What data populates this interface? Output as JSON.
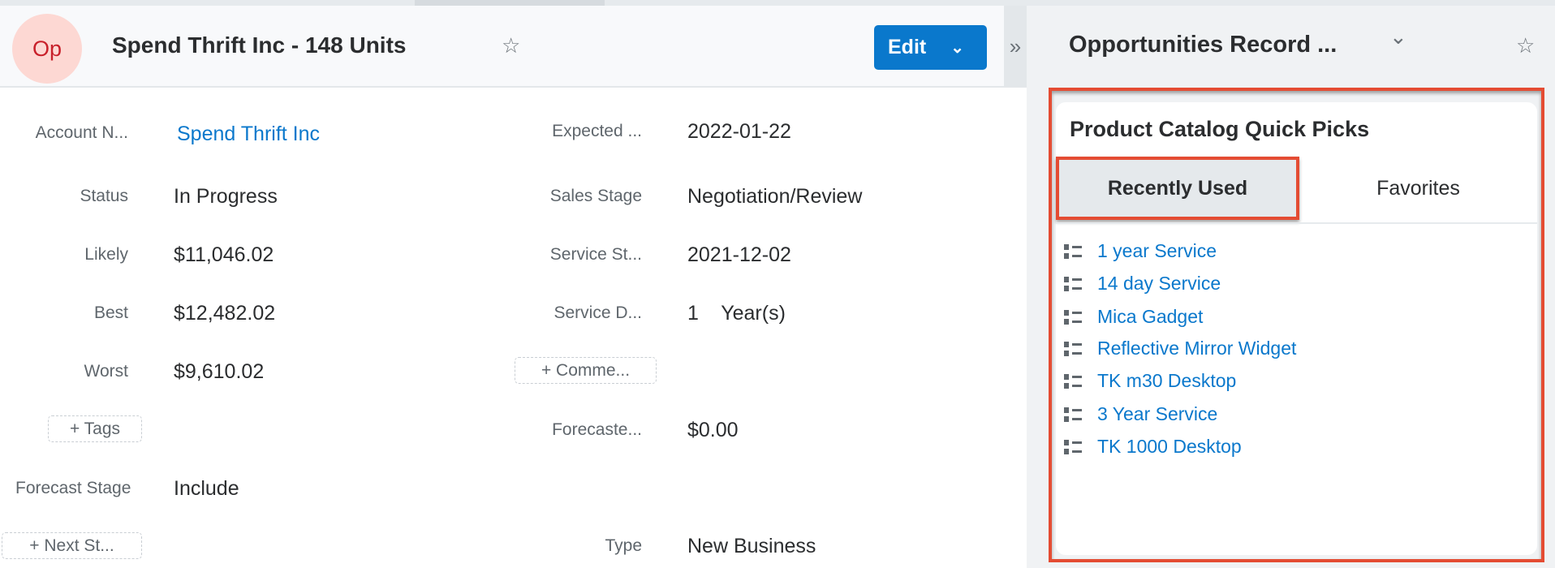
{
  "header": {
    "avatar": "Op",
    "title": "Spend Thrift Inc - 148 Units",
    "edit_label": "Edit",
    "collapse": "»"
  },
  "right_panel": {
    "title": "Opportunities Record ...",
    "chevron": "⌄"
  },
  "fields_left": [
    {
      "label": "Account N...",
      "value": "Spend Thrift Inc",
      "link": true
    },
    {
      "label": "Status",
      "value": "In Progress"
    },
    {
      "label": "Likely",
      "value": "$11,046.02"
    },
    {
      "label": "Best",
      "value": "$12,482.02"
    },
    {
      "label": "Worst",
      "value": "$9,610.02"
    }
  ],
  "tags_button": "+ Tags",
  "forecast_stage": {
    "label": "Forecast Stage",
    "value": "Include"
  },
  "next_step_button": "+ Next St...",
  "fields_right": [
    {
      "label": "Expected ...",
      "value": "2022-01-22"
    },
    {
      "label": "Sales Stage",
      "value": "Negotiation/Review"
    },
    {
      "label": "Service St...",
      "value": "2021-12-02"
    },
    {
      "label": "Service D...",
      "value": "1    Year(s)"
    }
  ],
  "comment_button": "+ Comme...",
  "forecasted": {
    "label": "Forecaste...",
    "value": "$0.00"
  },
  "type": {
    "label": "Type",
    "value": "New Business"
  },
  "dashlet": {
    "title": "Product Catalog Quick Picks",
    "tabs": [
      {
        "label": "Recently Used",
        "active": true
      },
      {
        "label": "Favorites",
        "active": false
      }
    ],
    "items": [
      "1 year Service",
      "14 day Service",
      "Mica Gadget",
      "Reflective Mirror Widget",
      "TK m30 Desktop",
      "3 Year Service",
      "TK 1000 Desktop"
    ],
    "item_icon": "list-icon"
  },
  "colors": {
    "accent": "#0a78cc",
    "highlight": "#e44c33",
    "avatar_bg": "#fdd8d3"
  }
}
